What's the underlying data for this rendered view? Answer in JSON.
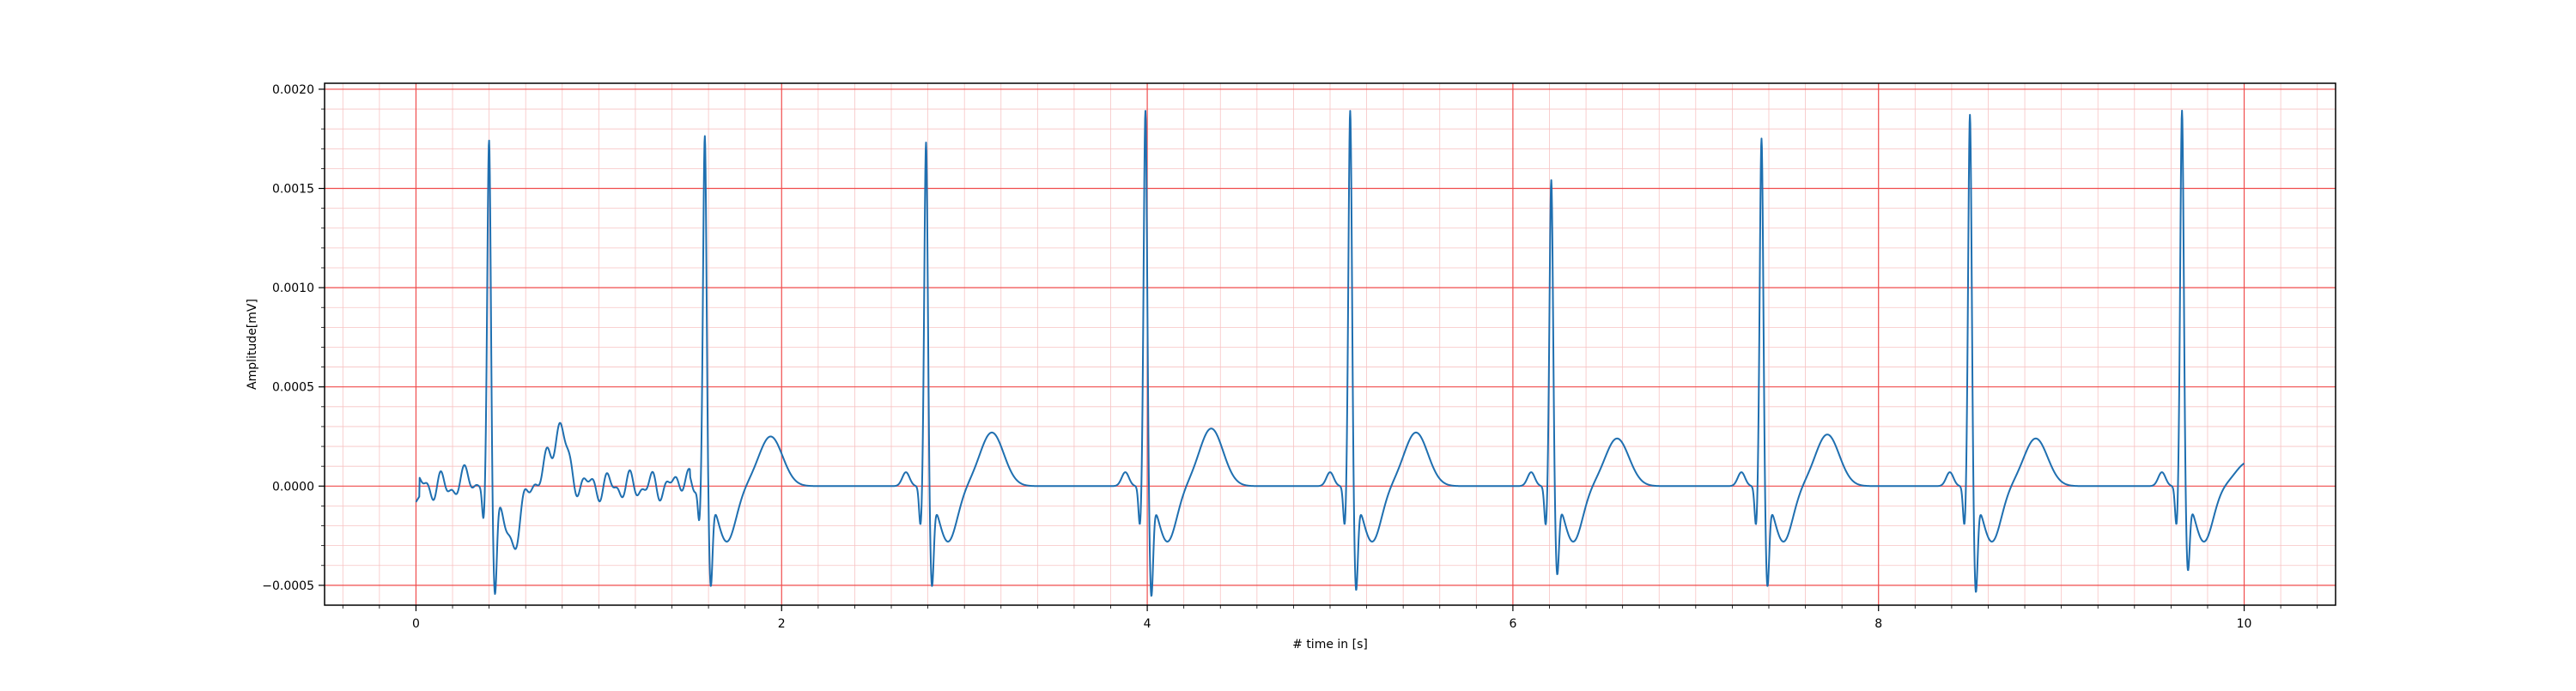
{
  "chart_data": {
    "type": "line",
    "title": "",
    "xlabel": "# time in [s]",
    "ylabel": "Amplitude[mV]",
    "xlim": [
      -0.5,
      10.5
    ],
    "ylim": [
      -0.0006,
      0.00203
    ],
    "xticks": [
      0,
      2,
      4,
      6,
      8,
      10
    ],
    "xtick_labels": [
      "0",
      "2",
      "4",
      "6",
      "8",
      "10"
    ],
    "yticks": [
      -0.0005,
      0.0,
      0.0005,
      0.001,
      0.0015,
      0.002
    ],
    "ytick_labels": [
      "−0.0005",
      "0.0000",
      "0.0005",
      "0.0010",
      "0.0015",
      "0.0020"
    ],
    "grid": true,
    "grid_major_color": "#f04c4c",
    "grid_minor_color": "#f7c3c3",
    "line_color": "#1f6fb0",
    "legend": "none",
    "beats": [
      {
        "r_time": 0.4,
        "r_peak": 0.00174,
        "s_trough": -0.00042,
        "t_peak": 2e-05
      },
      {
        "r_time": 1.58,
        "r_peak": 0.0018,
        "s_trough": -0.00045,
        "t_peak": 0.00013
      },
      {
        "r_time": 2.79,
        "r_peak": 0.00175,
        "s_trough": -0.00045,
        "t_peak": 0.00015
      },
      {
        "r_time": 3.99,
        "r_peak": 0.00191,
        "s_trough": -0.0005,
        "t_peak": 0.00017
      },
      {
        "r_time": 5.11,
        "r_peak": 0.00191,
        "s_trough": -0.00047,
        "t_peak": 0.00015
      },
      {
        "r_time": 6.21,
        "r_peak": 0.00156,
        "s_trough": -0.00039,
        "t_peak": 0.00012
      },
      {
        "r_time": 7.36,
        "r_peak": 0.00177,
        "s_trough": -0.00045,
        "t_peak": 0.00014
      },
      {
        "r_time": 8.5,
        "r_peak": 0.00189,
        "s_trough": -0.00048,
        "t_peak": 0.00012
      },
      {
        "r_time": 9.66,
        "r_peak": 0.00191,
        "s_trough": -0.00037,
        "t_peak": 0.0
      }
    ],
    "end_time": 10.0
  }
}
